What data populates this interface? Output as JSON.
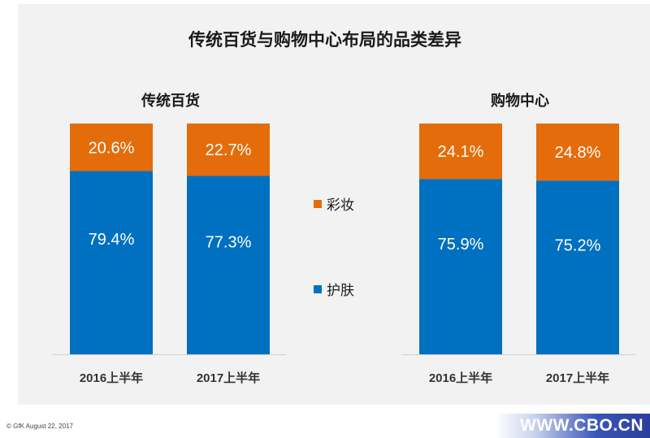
{
  "title": "传统百货与购物中心布局的品类差异",
  "chart_data": {
    "type": "bar",
    "stacked": true,
    "percent_stacked": true,
    "groups": [
      {
        "name": "传统百货",
        "categories": [
          "2016上半年",
          "2017上半年"
        ],
        "series": [
          {
            "name": "护肤",
            "values": [
              79.4,
              77.3
            ],
            "labels": [
              "79.4%",
              "77.3%"
            ]
          },
          {
            "name": "彩妆",
            "values": [
              20.6,
              22.7
            ],
            "labels": [
              "20.6%",
              "22.7%"
            ]
          }
        ]
      },
      {
        "name": "购物中心",
        "categories": [
          "2016上半年",
          "2017上半年"
        ],
        "series": [
          {
            "name": "护肤",
            "values": [
              75.9,
              75.2
            ],
            "labels": [
              "75.9%",
              "75.2%"
            ]
          },
          {
            "name": "彩妆",
            "values": [
              24.1,
              24.8
            ],
            "labels": [
              "24.1%",
              "24.8%"
            ]
          }
        ]
      }
    ],
    "legend": [
      {
        "name": "彩妆",
        "color": "#e46c0a"
      },
      {
        "name": "护肤",
        "color": "#0070c0"
      }
    ],
    "legend_position": "center"
  },
  "colors": {
    "skin": "#0070c0",
    "makeup": "#e46c0a"
  },
  "footer": "© GfK August 22, 2017",
  "watermark": "WWW.CBO.CN"
}
